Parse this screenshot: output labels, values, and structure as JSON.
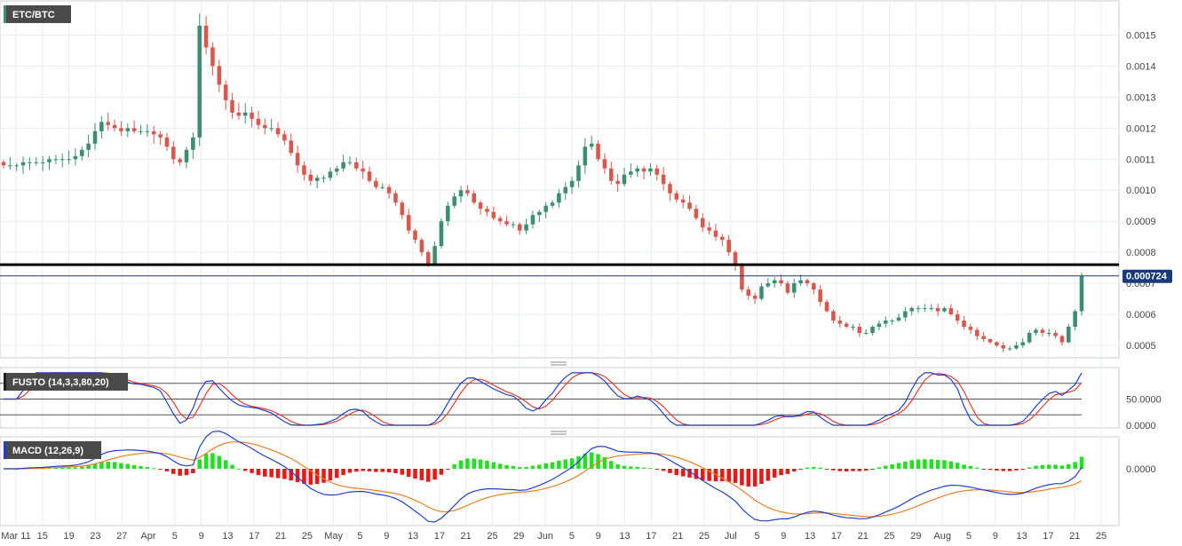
{
  "chart_data": {
    "type": "candlestick",
    "symbol": "ETC/BTC",
    "y_range": [
      0.00046,
      0.00161
    ],
    "y_ticks": [
      "0.0015",
      "0.0014",
      "0.0013",
      "0.0012",
      "0.0011",
      "0.0010",
      "0.0009",
      "0.0008",
      "0.0007",
      "0.0006",
      "0.0005"
    ],
    "y_tick_values": [
      0.0015,
      0.0014,
      0.0013,
      0.0012,
      0.0011,
      0.001,
      0.0009,
      0.0008,
      0.0007,
      0.0006,
      0.0005
    ],
    "x_labels": [
      "Mar 11",
      "15",
      "19",
      "23",
      "27",
      "Apr",
      "5",
      "9",
      "13",
      "17",
      "21",
      "25",
      "May",
      "5",
      "9",
      "13",
      "17",
      "21",
      "25",
      "29",
      "Jun",
      "5",
      "9",
      "13",
      "17",
      "21",
      "25",
      "Jul",
      "5",
      "9",
      "13",
      "17",
      "21",
      "25",
      "29",
      "Aug",
      "5",
      "9",
      "13",
      "17",
      "21",
      "25"
    ],
    "bars_count": 166,
    "close_series": [
      0.00108,
      0.00108,
      0.00108,
      0.00109,
      0.00109,
      0.00109,
      0.00109,
      0.0011,
      0.0011,
      0.0011,
      0.0011,
      0.00111,
      0.00113,
      0.00115,
      0.00119,
      0.00122,
      0.00121,
      0.0012,
      0.00119,
      0.0012,
      0.00119,
      0.00119,
      0.00119,
      0.00118,
      0.00117,
      0.00114,
      0.0011,
      0.00109,
      0.00113,
      0.00117,
      0.00153,
      0.00146,
      0.0014,
      0.00134,
      0.00129,
      0.00125,
      0.00124,
      0.00125,
      0.00123,
      0.00121,
      0.0012,
      0.0012,
      0.00118,
      0.00116,
      0.00112,
      0.00108,
      0.00105,
      0.00103,
      0.00104,
      0.00104,
      0.00106,
      0.00107,
      0.00109,
      0.00109,
      0.00107,
      0.00106,
      0.00103,
      0.00101,
      0.00101,
      0.00099,
      0.00096,
      0.00092,
      0.00087,
      0.00084,
      0.0008,
      0.00076,
      0.00082,
      0.0009,
      0.00095,
      0.00098,
      0.001,
      0.00099,
      0.00096,
      0.00094,
      0.00093,
      0.00091,
      0.0009,
      0.00089,
      0.00089,
      0.00087,
      0.00089,
      0.00092,
      0.00093,
      0.00095,
      0.00096,
      0.00099,
      0.00101,
      0.00103,
      0.00108,
      0.00114,
      0.00115,
      0.0011,
      0.00107,
      0.00103,
      0.00102,
      0.00105,
      0.00106,
      0.00107,
      0.00106,
      0.00107,
      0.00105,
      0.00102,
      0.00099,
      0.00097,
      0.00096,
      0.00094,
      0.00091,
      0.00088,
      0.00087,
      0.00085,
      0.00084,
      0.0008,
      0.00076,
      0.00068,
      0.00066,
      0.00065,
      0.00069,
      0.0007,
      0.00071,
      0.0007,
      0.00067,
      0.0007,
      0.00071,
      0.0007,
      0.00068,
      0.00064,
      0.00061,
      0.00058,
      0.00057,
      0.00056,
      0.00056,
      0.00054,
      0.00054,
      0.00056,
      0.00057,
      0.00058,
      0.00058,
      0.00059,
      0.00061,
      0.00062,
      0.00062,
      0.00062,
      0.00062,
      0.00061,
      0.00062,
      0.0006,
      0.00058,
      0.00056,
      0.00055,
      0.00053,
      0.00052,
      0.00051,
      0.0005,
      0.00049,
      0.00049,
      0.0005,
      0.00051,
      0.00054,
      0.00055,
      0.00054,
      0.00054,
      0.00053,
      0.00051,
      0.00056,
      0.00061,
      0.000724
    ],
    "current_price": "0.000724",
    "horizontal_levels": [
      {
        "value": 0.00076,
        "color": "#000000",
        "width": "thick"
      },
      {
        "value": 0.000724,
        "color": "#1b3a7a",
        "width": "thin"
      }
    ],
    "indicators": [
      {
        "name": "FUSTO (14,3,3,80,20)",
        "type": "stochastic",
        "y_range": [
          -5,
          110
        ],
        "y_ticks": [
          "50.0000",
          "0.0000"
        ],
        "y_tick_values": [
          50,
          0
        ],
        "levels": [
          80,
          50,
          20
        ],
        "k_color": "#1f3fcf",
        "d_color": "#e53a2a"
      },
      {
        "name": "MACD (12,26,9)",
        "type": "macd",
        "y_ticks": [
          "0.0000"
        ],
        "y_tick_values": [
          0
        ],
        "macd_color": "#1f3fcf",
        "signal_color": "#f07d22",
        "hist_up_color": "#22e022",
        "hist_down_color": "#e81818"
      }
    ],
    "candle_colors": {
      "up": "#3b8f70",
      "down": "#d9574b"
    },
    "grid": true
  },
  "colors": {
    "bg": "#ffffff",
    "grid": "#e8ecf4",
    "axis_line": "#c8ccd4",
    "label_bg": "#4a4a4a",
    "price_badge_bg": "#1b3a7a"
  }
}
